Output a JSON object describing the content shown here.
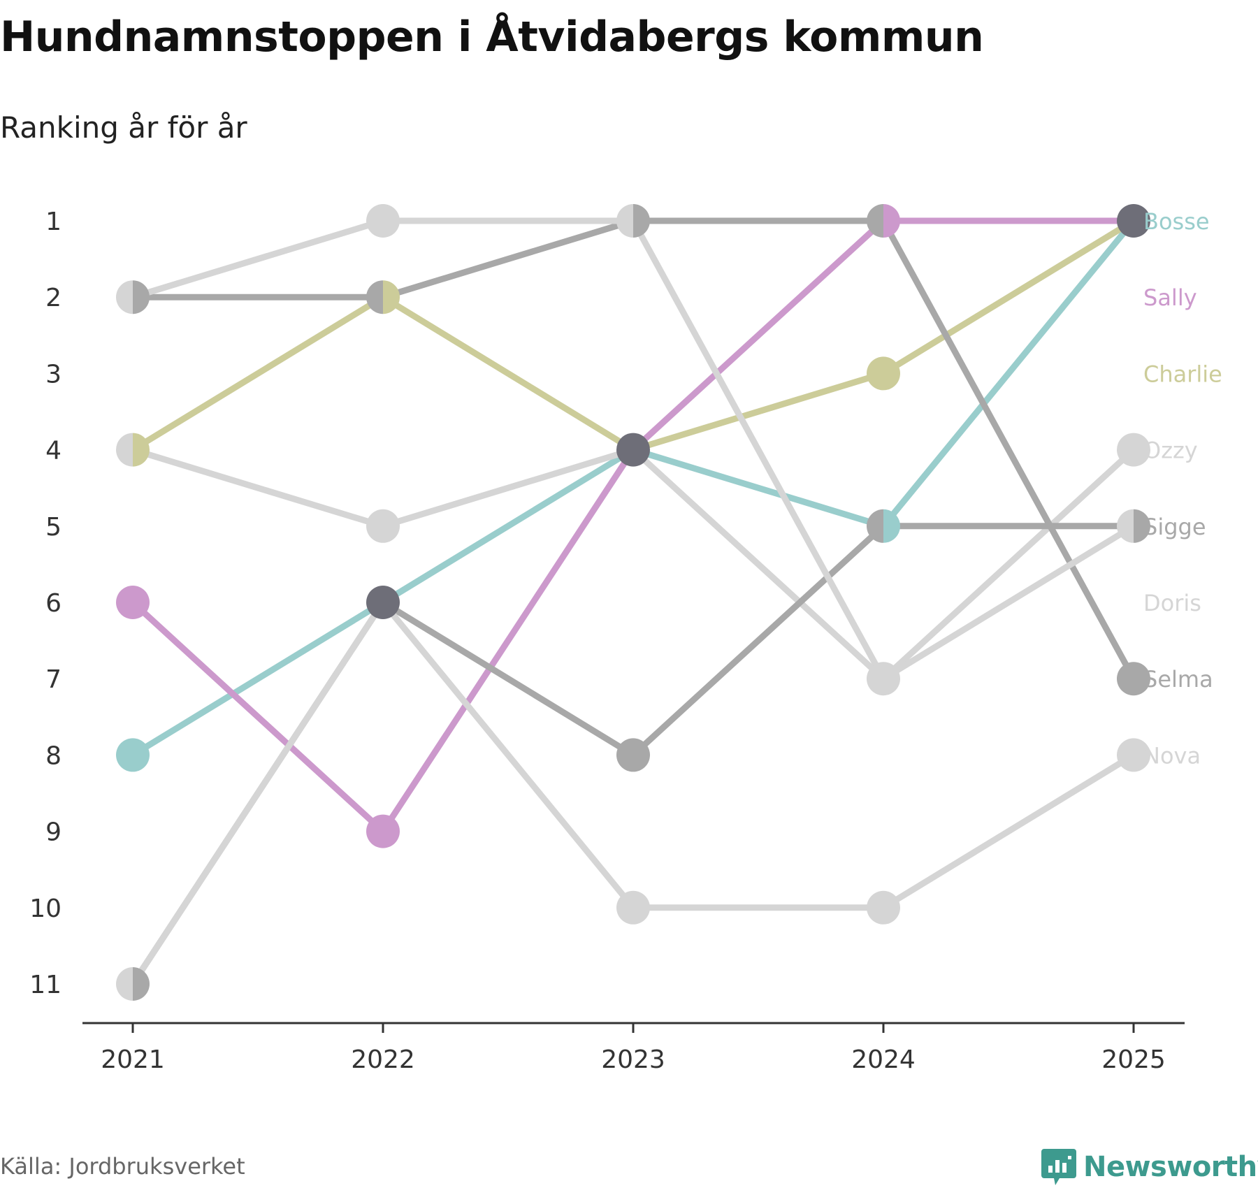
{
  "header": {
    "title": "Hundnamnstoppen i Åtvidabergs kommun",
    "subtitle": "Ranking år för år"
  },
  "footer": {
    "source": "Källa: Jordbruksverket",
    "brand": "Newsworthy"
  },
  "colors": {
    "Bosse": "#99cdcc",
    "Sally": "#cc99cc",
    "Charlie": "#cccc99",
    "Ozzy": "#d5d5d5",
    "Sigge": "#a8a8a8",
    "Doris": "#d5d5d5",
    "Selma": "#a8a8a8",
    "Nova": "#d5d5d5",
    "tie": "#6e6e78",
    "axis": "#333333",
    "brand": "#3d9a8e"
  },
  "chart_data": {
    "type": "line",
    "title": "Hundnamnstoppen i Åtvidabergs kommun",
    "subtitle": "Ranking år för år",
    "xlabel": "",
    "ylabel": "",
    "x": [
      "2021",
      "2022",
      "2023",
      "2024",
      "2025"
    ],
    "yticks": [
      "1",
      "2",
      "3",
      "4",
      "5",
      "6",
      "7",
      "8",
      "9",
      "10",
      "11"
    ],
    "ylim": [
      1,
      11
    ],
    "y_reversed": true,
    "grid": false,
    "series": [
      {
        "name": "Bosse",
        "values": [
          8,
          6,
          4,
          5,
          1
        ]
      },
      {
        "name": "Sally",
        "values": [
          6,
          9,
          4,
          1,
          1
        ]
      },
      {
        "name": "Charlie",
        "values": [
          4,
          2,
          4,
          3,
          1
        ]
      },
      {
        "name": "Ozzy",
        "values": [
          4,
          5,
          4,
          7,
          4
        ]
      },
      {
        "name": "Sigge",
        "values": [
          11,
          6,
          8,
          5,
          5
        ]
      },
      {
        "name": "Doris",
        "values": [
          11,
          6,
          10,
          10,
          8
        ]
      },
      {
        "name": "Selma",
        "values": [
          2,
          2,
          1,
          1,
          7
        ]
      },
      {
        "name": "Nova",
        "values": [
          2,
          1,
          1,
          7,
          5
        ]
      }
    ],
    "end_labels": [
      "Bosse",
      "Sally",
      "Charlie",
      "Ozzy",
      "Sigge",
      "Doris",
      "Selma",
      "Nova"
    ]
  }
}
